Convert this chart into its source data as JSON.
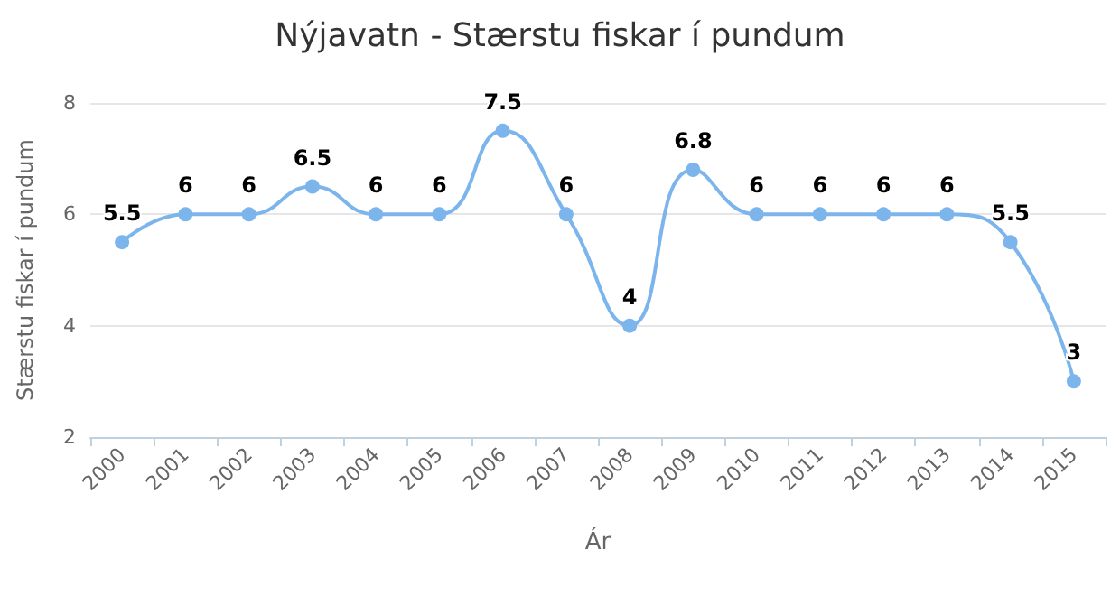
{
  "chart_data": {
    "type": "line",
    "title": "Nýjavatn - Stærstu fiskar í pundum",
    "xlabel": "Ár",
    "ylabel": "Stærstu fiskar í pundum",
    "categories": [
      "2000",
      "2001",
      "2002",
      "2003",
      "2004",
      "2005",
      "2006",
      "2007",
      "2008",
      "2009",
      "2010",
      "2011",
      "2012",
      "2013",
      "2014",
      "2015"
    ],
    "values": [
      5.5,
      6,
      6,
      6.5,
      6,
      6,
      7.5,
      6,
      4,
      6.8,
      6,
      6,
      6,
      6,
      5.5,
      3
    ],
    "color": "#7cb5ec",
    "ylim": [
      2,
      8
    ],
    "yticks": [
      2,
      4,
      6,
      8
    ],
    "grid": "y",
    "data_labels": true,
    "marker": "circle"
  }
}
